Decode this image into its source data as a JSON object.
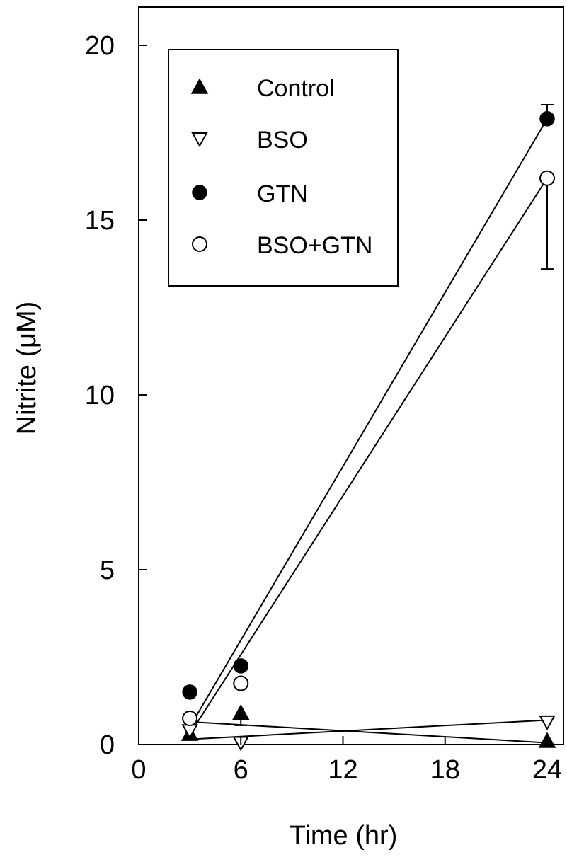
{
  "chart_data": {
    "type": "line",
    "title": "",
    "xlabel": "Time (hr)",
    "ylabel": "Nitrite (μM)",
    "xlim": [
      0,
      26
    ],
    "ylim": [
      0,
      20
    ],
    "x_ticks": [
      0,
      6,
      12,
      18,
      24
    ],
    "x_tick_labels": [
      "0",
      "6",
      "12",
      "18",
      "24"
    ],
    "y_ticks": [
      0,
      5,
      10,
      15,
      20
    ],
    "y_tick_labels": [
      "0",
      "5",
      "10",
      "15",
      "20"
    ],
    "grid": false,
    "legend_position": "top-left",
    "series": [
      {
        "name": "Control",
        "marker": "triangle-up-filled",
        "x": [
          3,
          6,
          24
        ],
        "y": [
          0.3,
          0.9,
          0.1
        ],
        "error": [
          0,
          0.35,
          0
        ],
        "fit": {
          "x": [
            3,
            24
          ],
          "y": [
            0.65,
            0.05
          ]
        }
      },
      {
        "name": "BSO",
        "marker": "triangle-down-open",
        "x": [
          3,
          6,
          24
        ],
        "y": [
          0.4,
          0.05,
          0.65
        ],
        "error": [
          0,
          0,
          0
        ],
        "fit": {
          "x": [
            3,
            24
          ],
          "y": [
            0.15,
            0.7
          ]
        }
      },
      {
        "name": "GTN",
        "marker": "circle-filled",
        "x": [
          3,
          6,
          24
        ],
        "y": [
          1.5,
          2.25,
          17.9
        ],
        "error": [
          0,
          0,
          0.4
        ],
        "fit": {
          "x": [
            3,
            24
          ],
          "y": [
            0.5,
            17.9
          ]
        }
      },
      {
        "name": "BSO+GTN",
        "marker": "circle-open",
        "x": [
          3,
          6,
          24
        ],
        "y": [
          0.75,
          1.75,
          16.2
        ],
        "error": [
          0,
          0,
          2.6
        ],
        "fit": {
          "x": [
            3,
            24
          ],
          "y": [
            0.3,
            16.2
          ]
        }
      }
    ]
  }
}
